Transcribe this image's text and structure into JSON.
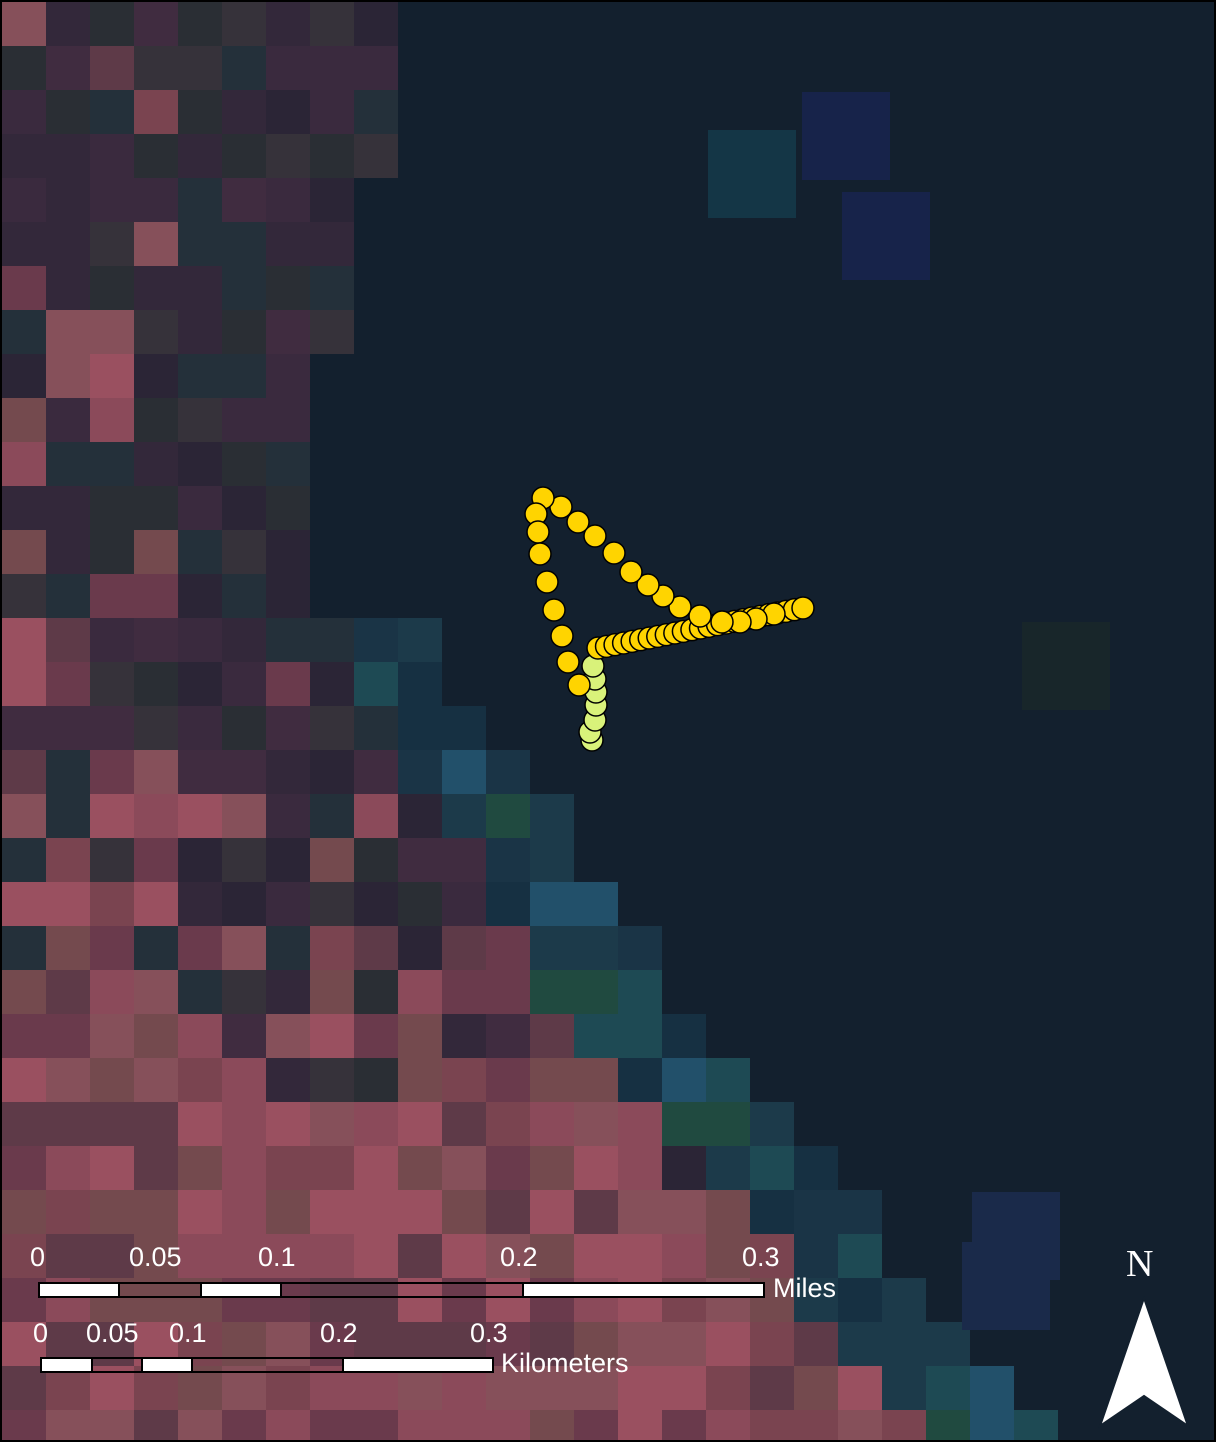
{
  "map": {
    "basemap": "false-color satellite raster (red/magenta land on the west, dark water to the east)",
    "track_points": [
      {
        "color": "#ffd400"
      },
      {
        "color": "#d9f27a"
      }
    ]
  },
  "scale_bar": {
    "miles": {
      "unit": "Miles",
      "ticks": [
        "0",
        "0.05",
        "0.1",
        "0.2",
        "0.3"
      ]
    },
    "kilometers": {
      "unit": "Kilometers",
      "ticks": [
        "0",
        "0.05",
        "0.1",
        "0.2",
        "0.3"
      ]
    }
  },
  "north_arrow": {
    "label": "N",
    "icon": "north-arrow-icon"
  },
  "colors": {
    "water": "#13202e",
    "track_yellow": "#ffd400",
    "track_light_green": "#d9f27a",
    "outline": "#000000"
  }
}
